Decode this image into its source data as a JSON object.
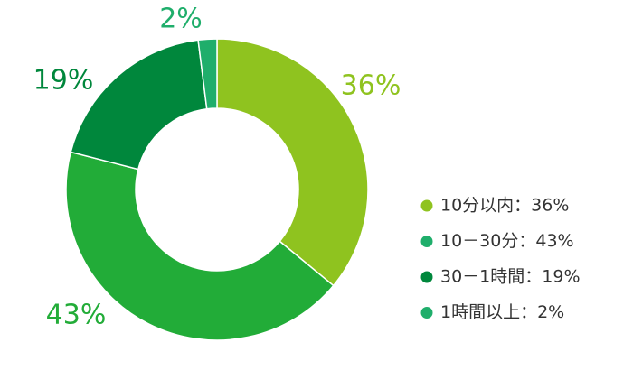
{
  "chart_data": {
    "type": "donut",
    "series": [
      {
        "name": "10分以内：36%",
        "color": "#8fc31f",
        "legend_color": "#8fc31f",
        "value": 36,
        "value_label": "36%"
      },
      {
        "name": "10－30分：43%",
        "color": "#22ac38",
        "legend_color": "#1fae6b",
        "value": 43,
        "value_label": "43%"
      },
      {
        "name": "30－1時間：19%",
        "color": "#00873c",
        "legend_color": "#00873c",
        "value": 19,
        "value_label": "19%"
      },
      {
        "name": "1時間以上：2%",
        "color": "#1fae6b",
        "legend_color": "#1fae6b",
        "value": 2,
        "value_label": "2%"
      }
    ]
  }
}
